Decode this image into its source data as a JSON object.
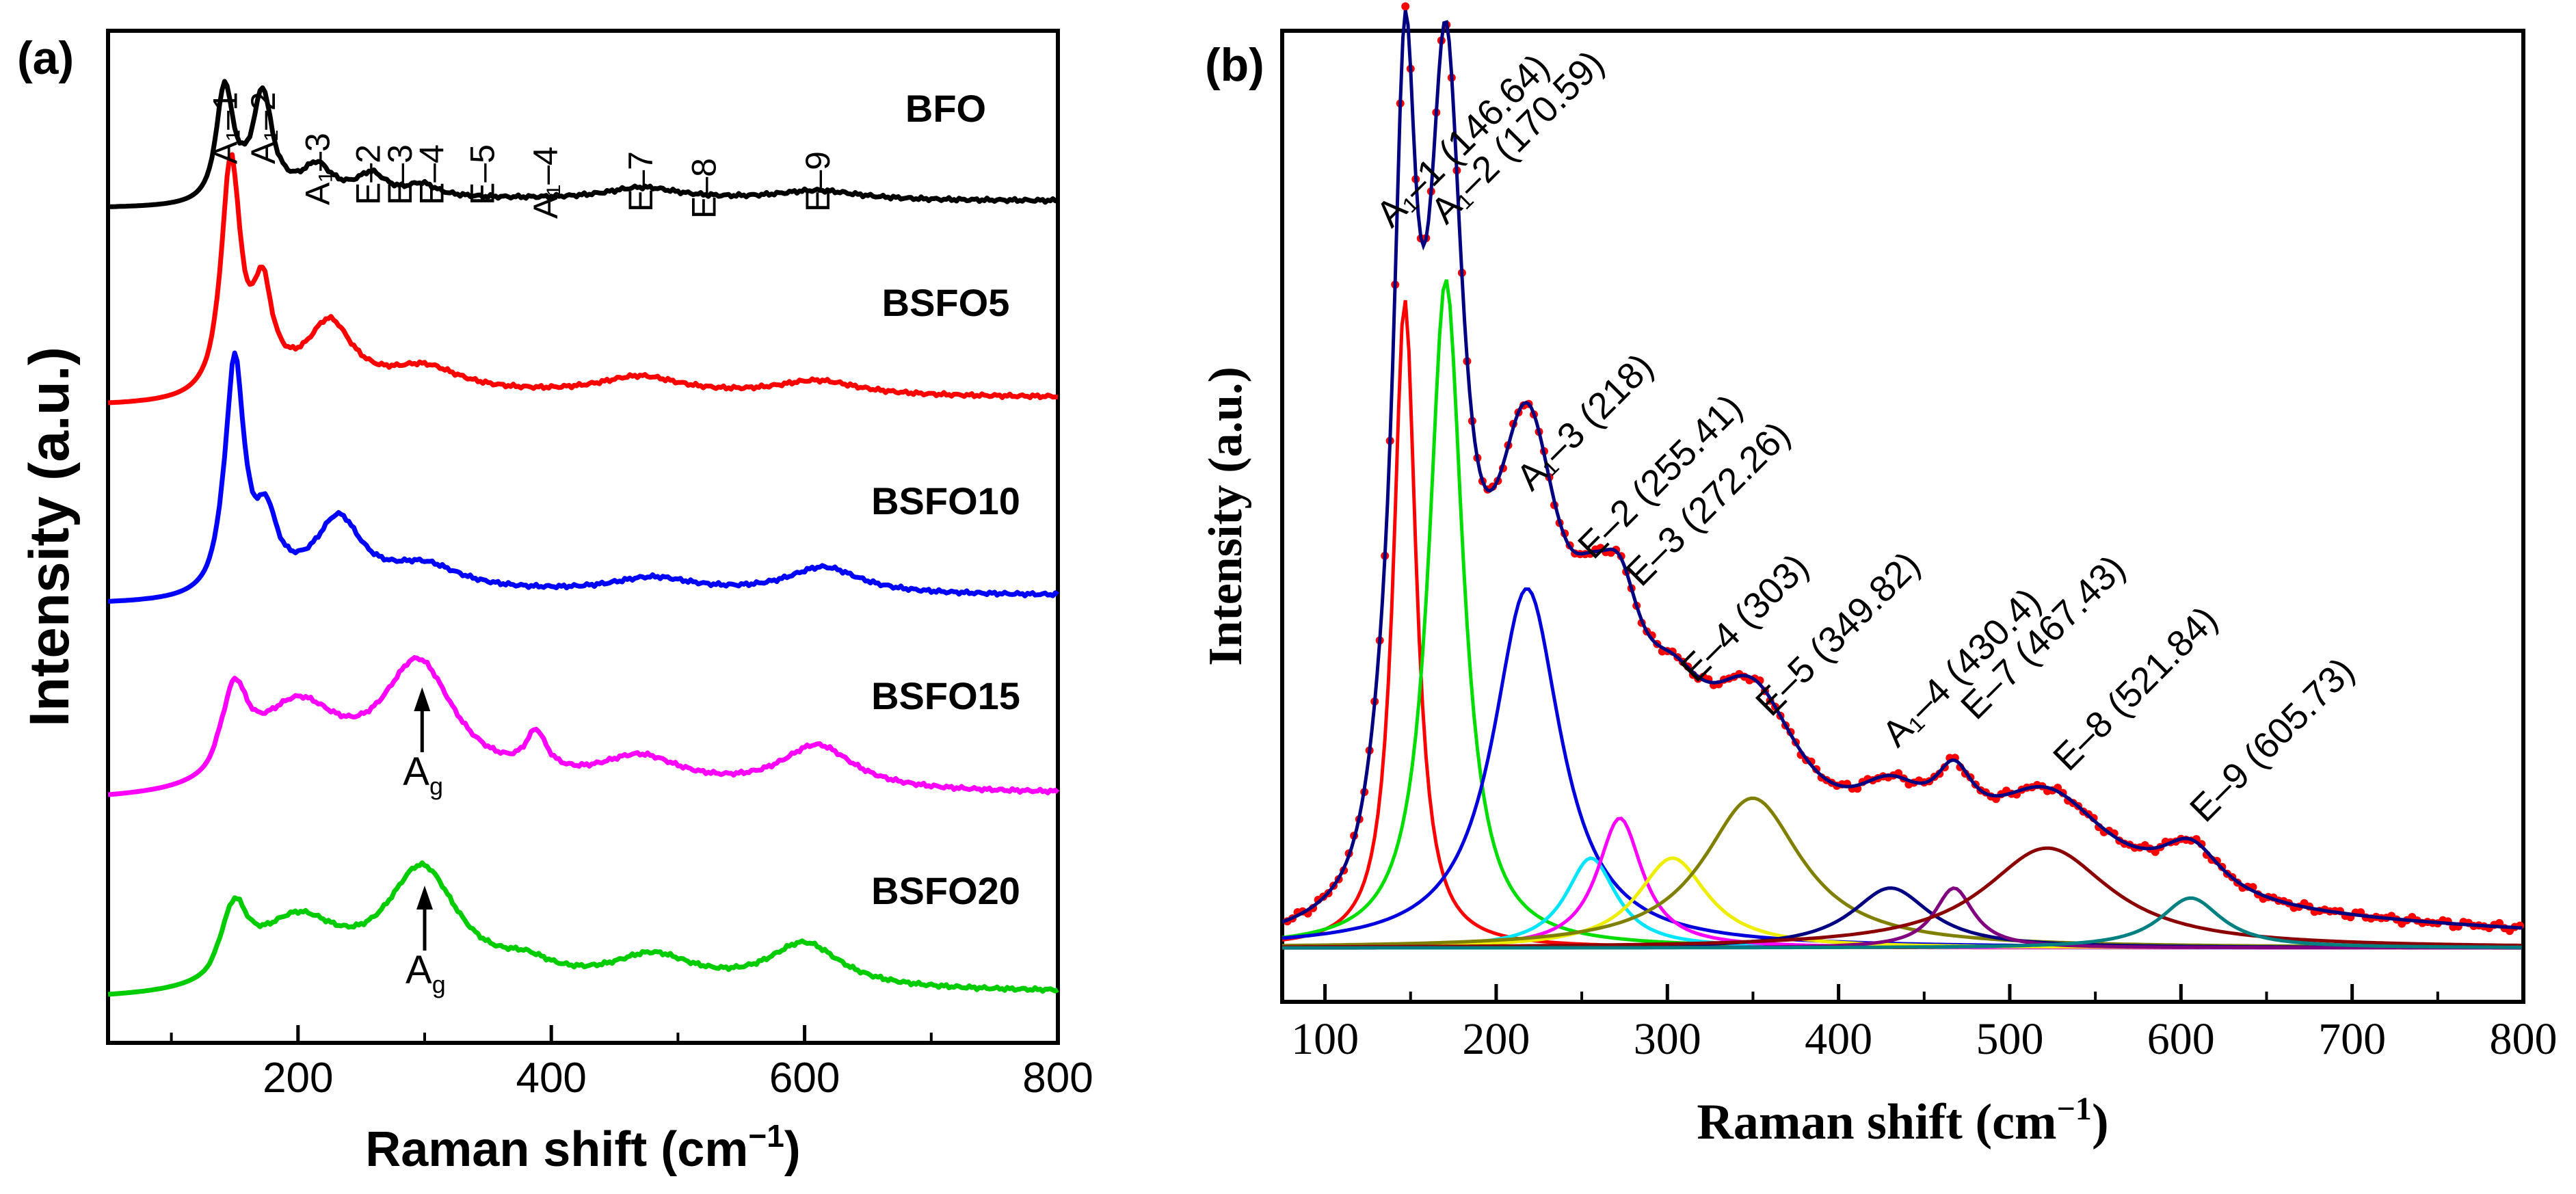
{
  "chart_data": [
    {
      "panel_label": "(a)",
      "type": "line",
      "xlabel": "Raman shift (cm",
      "xlabel_sup": "−1",
      "xlabel_tail": ")",
      "ylabel": "Intensity (a.u.)",
      "xlim": [
        50,
        800
      ],
      "xticks": [
        "200",
        "400",
        "600",
        "800"
      ],
      "series": [
        {
          "name": "BFO",
          "color": "#000000",
          "level": 0.8,
          "gain": 0.8,
          "peaks": [
            [
              142,
              8,
              0.45
            ],
            [
              172,
              9,
              0.42
            ],
            [
              215,
              14,
              0.12
            ],
            [
              258,
              14,
              0.09
            ],
            [
              298,
              14,
              0.05
            ],
            [
              472,
              35,
              0.05
            ],
            [
              610,
              40,
              0.04
            ]
          ]
        },
        {
          "name": "BSFO5",
          "color": "#ff0000",
          "level": 0.6,
          "gain": 1.0,
          "peaks": [
            [
              147,
              9,
              0.75
            ],
            [
              172,
              9,
              0.3
            ],
            [
              225,
              22,
              0.22
            ],
            [
              300,
              35,
              0.08
            ],
            [
              470,
              40,
              0.06
            ],
            [
              610,
              40,
              0.05
            ]
          ]
        },
        {
          "name": "BSFO10",
          "color": "#0000ff",
          "level": 0.4,
          "gain": 1.0,
          "peaks": [
            [
              150,
              9,
              0.75
            ],
            [
              175,
              10,
              0.2
            ],
            [
              232,
              22,
              0.23
            ],
            [
              300,
              35,
              0.08
            ],
            [
              480,
              40,
              0.05
            ],
            [
              615,
              35,
              0.09
            ]
          ]
        },
        {
          "name": "BSFO15",
          "color": "#ff00ff",
          "level": 0.2,
          "gain": 1.0,
          "peaks": [
            [
              150,
              12,
              0.25
            ],
            [
              200,
              40,
              0.25
            ],
            [
              295,
              35,
              0.4
            ],
            [
              388,
              10,
              0.13
            ],
            [
              470,
              40,
              0.1
            ],
            [
              610,
              35,
              0.15
            ]
          ]
        },
        {
          "name": "BSFO20",
          "color": "#00cc00",
          "level": 0.0,
          "gain": 1.0,
          "peaks": [
            [
              150,
              12,
              0.2
            ],
            [
              200,
              40,
              0.2
            ],
            [
              298,
              35,
              0.38
            ],
            [
              380,
              25,
              0.05
            ],
            [
              480,
              40,
              0.1
            ],
            [
              600,
              35,
              0.15
            ]
          ]
        }
      ],
      "mode_labels": [
        "A₁–1",
        "A₁–2",
        "A₁–3",
        "E–2",
        "E–3",
        "E–4",
        "E–5",
        "A₁–4",
        "E–7",
        "E–8",
        "E–9"
      ],
      "annotations": [
        "A",
        "A"
      ],
      "annotation_sub": "g",
      "annotation_x": [
        298,
        300
      ]
    },
    {
      "panel_label": "(b)",
      "type": "line",
      "xlabel": "Raman shift (cm",
      "xlabel_sup": "−1",
      "xlabel_tail": ")",
      "ylabel": "Intensity (a.u.)",
      "xlim": [
        75,
        800
      ],
      "xticks": [
        "100",
        "200",
        "300",
        "400",
        "500",
        "600",
        "700",
        "800"
      ],
      "baseline": 0.03,
      "peaks": [
        {
          "label": "A₁–1 (146.64)",
          "center": 146.64,
          "width": 8,
          "amp": 0.65,
          "color": "#ff0000"
        },
        {
          "label": "A₁–2 (170.59)",
          "center": 170.59,
          "width": 12,
          "amp": 0.67,
          "color": "#00dd00"
        },
        {
          "label": "A₁–3 (218)",
          "center": 218,
          "width": 24,
          "amp": 0.36,
          "color": "#0000dd"
        },
        {
          "label": "E–2 (255.41)",
          "center": 255.41,
          "width": 18,
          "amp": 0.09,
          "color": "#00e5ff"
        },
        {
          "label": "E–3 (272.26)",
          "center": 272.26,
          "width": 16,
          "amp": 0.13,
          "color": "#ff00ff"
        },
        {
          "label": "E–4 (303)",
          "center": 303,
          "width": 25,
          "amp": 0.09,
          "color": "#eeee00"
        },
        {
          "label": "E–5 (349.82)",
          "center": 349.82,
          "width": 35,
          "amp": 0.15,
          "color": "#808000"
        },
        {
          "label": "A₁–4 (430.4)",
          "center": 430.4,
          "width": 28,
          "amp": 0.06,
          "color": "#000080"
        },
        {
          "label": "E–7 (467.43)",
          "center": 467.43,
          "width": 14,
          "amp": 0.06,
          "color": "#800080"
        },
        {
          "label": "E–8 (521.84)",
          "center": 521.84,
          "width": 45,
          "amp": 0.1,
          "color": "#8b0000"
        },
        {
          "label": "E–9 (605.73)",
          "center": 605.73,
          "width": 22,
          "amp": 0.05,
          "color": "#008080"
        }
      ]
    }
  ]
}
